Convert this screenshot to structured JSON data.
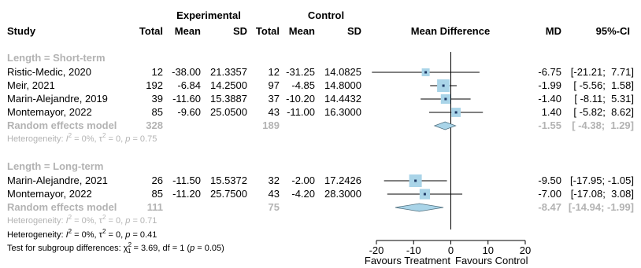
{
  "chart_data": {
    "type": "forest",
    "header": {
      "group1": "Experimental",
      "group2": "Control",
      "study": "Study",
      "total": "Total",
      "mean": "Mean",
      "sd": "SD",
      "total2": "Total",
      "mean2": "Mean",
      "sd2": "SD",
      "effect": "Mean Difference",
      "md": "MD",
      "ci": "95%-CI"
    },
    "xlim": [
      -20,
      20
    ],
    "ticks": [
      "-20",
      "-10",
      "0",
      "10",
      "20"
    ],
    "tick_values": [
      -20,
      -10,
      0,
      10,
      20
    ],
    "favours_left": "Favours Treatment",
    "favours_right": "Favours Control",
    "subgroups": [
      {
        "label": "Length = Short-term",
        "studies": [
          {
            "study": "Ristic-Medic, 2020",
            "n1": "12",
            "m1": "-38.00",
            "sd1": "21.3357",
            "n2": "12",
            "m2": "-31.25",
            "sd2": "14.0825",
            "md_text": "-6.75",
            "ci_text": "[-21.21;  7.71]",
            "md": -6.75,
            "lo": -21.21,
            "hi": 7.71,
            "weight": 0.4
          },
          {
            "study": "Meir, 2021",
            "n1": "192",
            "m1": "-6.84",
            "sd1": "14.2500",
            "n2": "97",
            "m2": "-4.85",
            "sd2": "14.8000",
            "md_text": "-1.99",
            "ci_text": "[ -5.56;  1.58]",
            "md": -1.99,
            "lo": -5.56,
            "hi": 1.58,
            "weight": 1.0
          },
          {
            "study": "Marin-Alejandre, 2019",
            "n1": "39",
            "m1": "-11.60",
            "sd1": "15.3887",
            "n2": "37",
            "m2": "-10.20",
            "sd2": "14.4432",
            "md_text": "-1.40",
            "ci_text": "[ -8.11;  5.31]",
            "md": -1.4,
            "lo": -8.11,
            "hi": 5.31,
            "weight": 0.62
          },
          {
            "study": "Montemayor, 2022",
            "n1": "85",
            "m1": "-9.60",
            "sd1": "25.0500",
            "n2": "43",
            "m2": "-11.00",
            "sd2": "16.3000",
            "md_text": "1.40",
            "ci_text": "[ -5.82;  8.62]",
            "md": 1.4,
            "lo": -5.82,
            "hi": 8.62,
            "weight": 0.58
          }
        ],
        "pooled": {
          "label": "Random effects model",
          "n1": "328",
          "n2": "189",
          "md_text": "-1.55",
          "ci_text": "[ -4.38;  1.29]",
          "md": -1.55,
          "lo": -4.38,
          "hi": 1.29
        },
        "heterogeneity": {
          "prefix": "Heterogeneity: ",
          "i2_sym": "I",
          "i2_val": " = 0%, ",
          "tau_sym": "τ",
          "tau_val": " = 0, ",
          "p_sym": "p",
          "p_val": " = 0.75"
        }
      },
      {
        "label": "Length = Long-term",
        "studies": [
          {
            "study": "Marin-Alejandre, 2021",
            "n1": "26",
            "m1": "-11.50",
            "sd1": "15.5372",
            "n2": "32",
            "m2": "-2.00",
            "sd2": "17.2426",
            "md_text": "-9.50",
            "ci_text": "[-17.95; -1.05]",
            "md": -9.5,
            "lo": -17.95,
            "hi": -1.05,
            "weight": 1.0
          },
          {
            "study": "Montemayor, 2022",
            "n1": "85",
            "m1": "-11.20",
            "sd1": "25.7500",
            "n2": "43",
            "m2": "-4.20",
            "sd2": "28.3000",
            "md_text": "-7.00",
            "ci_text": "[-17.08;  3.08]",
            "md": -7.0,
            "lo": -17.08,
            "hi": 3.08,
            "weight": 0.72
          }
        ],
        "pooled": {
          "label": "Random effects model",
          "n1": "111",
          "n2": "75",
          "md_text": "-8.47",
          "ci_text": "[-14.94; -1.99]",
          "md": -8.47,
          "lo": -14.94,
          "hi": -1.99
        },
        "heterogeneity": {
          "prefix": "Heterogeneity: ",
          "i2_sym": "I",
          "i2_val": " = 0%, ",
          "tau_sym": "τ",
          "tau_val": " = 0, ",
          "p_sym": "p",
          "p_val": " = 0.71"
        }
      }
    ],
    "overall_heterogeneity": {
      "prefix": "Heterogeneity: ",
      "i2_sym": "I",
      "i2_val": " = 0%, ",
      "tau_sym": "τ",
      "tau_val": " = 0, ",
      "p_sym": "p",
      "p_val": " = 0.41"
    },
    "subgroup_test": {
      "prefix": "Test for subgroup differences: ",
      "chi_sym": "χ",
      "chi_sub": "1",
      "chi_val": " = 3.69, df = 1 (",
      "p_sym": "p",
      "p_val": " = 0.05)"
    },
    "colors": {
      "square": "#a9d4e8",
      "diamond": "#a9d4e8",
      "gray_text": "#b3b3b3",
      "line": "#000000",
      "point": "#1f3a66"
    }
  }
}
